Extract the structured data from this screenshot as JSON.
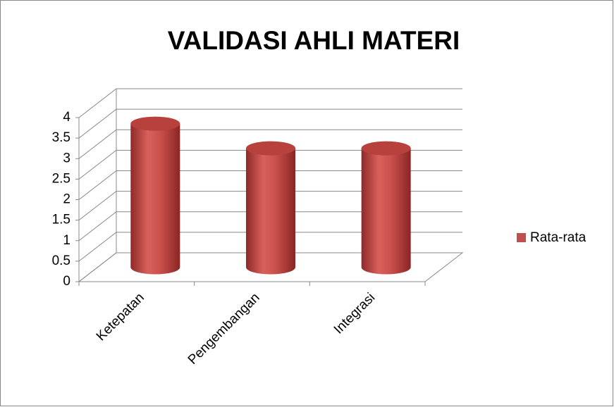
{
  "chart_data": {
    "type": "bar3d",
    "title": "VALIDASI AHLI MATERI",
    "categories": [
      "Ketepatan",
      "Pengembangan",
      "Integrasi"
    ],
    "series": [
      {
        "name": "Rata-rata",
        "color": "#c0504d",
        "values": [
          3.5,
          2.9,
          2.9
        ]
      }
    ],
    "ylim": [
      0,
      4
    ],
    "yticks": [
      0,
      0.5,
      1,
      1.5,
      2,
      2.5,
      3,
      3.5,
      4
    ],
    "grid": true,
    "legend": "right"
  }
}
